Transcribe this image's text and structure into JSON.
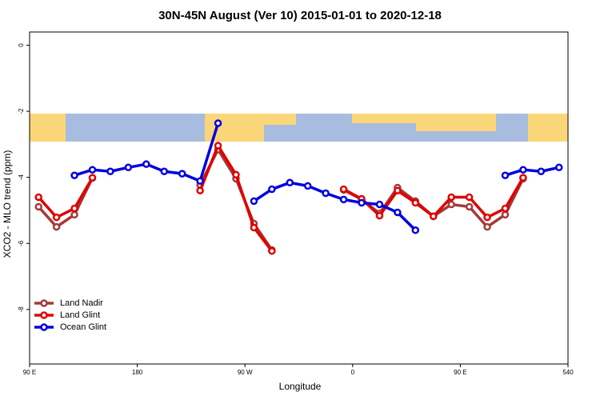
{
  "chart_data": {
    "type": "line",
    "title": "30N-45N August (Ver 10)   2015-01-01 to 2020-12-18",
    "x_label": "Longitude",
    "y_label": "XCO2 - MLO trend (ppm)",
    "x": [
      97.5,
      112.5,
      127.5,
      142.5,
      157.5,
      172.5,
      187.5,
      202.5,
      217.5,
      232.5,
      247.5,
      262.5,
      277.5,
      292.5,
      307.5,
      322.5,
      337.5,
      352.5,
      367.5,
      382.5,
      397.5,
      412.5,
      427.5,
      442.5,
      457.5,
      472.5,
      487.5,
      502.5,
      517.5,
      532.5
    ],
    "series": [
      {
        "name": "Land Nadir",
        "color": "#a33a3a",
        "values": [
          -4.89,
          -5.5,
          -5.13,
          -4.02,
          null,
          null,
          null,
          null,
          null,
          -4.23,
          -3.16,
          -4.04,
          -5.4,
          -6.2,
          null,
          null,
          null,
          -4.38,
          -4.67,
          -5.09,
          -4.31,
          -4.72,
          -5.18,
          -4.82,
          -4.89,
          -5.5,
          -5.13,
          -4.04,
          null,
          null
        ]
      },
      {
        "name": "Land Glint",
        "color": "#e00000",
        "values": [
          -4.6,
          -5.21,
          -4.94,
          -4.01,
          null,
          null,
          null,
          null,
          null,
          -4.4,
          -3.04,
          -3.92,
          -5.52,
          -6.23,
          null,
          null,
          null,
          -4.36,
          -4.65,
          -5.16,
          -4.4,
          -4.77,
          -5.18,
          -4.6,
          -4.6,
          -5.21,
          -4.94,
          -4.01,
          null,
          null
        ]
      },
      {
        "name": "Ocean Glint",
        "color": "#0000dd",
        "values": [
          null,
          null,
          -3.94,
          -3.77,
          -3.82,
          -3.7,
          -3.6,
          -3.82,
          -3.89,
          -4.11,
          -2.36,
          null,
          -4.72,
          -4.36,
          -4.16,
          -4.26,
          -4.48,
          -4.67,
          -4.77,
          -4.82,
          -5.06,
          -5.6,
          null,
          null,
          null,
          null,
          -3.94,
          -3.77,
          -3.82,
          -3.7
        ]
      }
    ],
    "xlim": [
      90,
      540
    ],
    "xticks": [
      {
        "value": 90,
        "label": "90 E"
      },
      180,
      {
        "value": 270,
        "label": "90 W"
      },
      {
        "value": 360,
        "label": "0"
      },
      {
        "value": 450,
        "label": "90 E"
      },
      540
    ],
    "ylim": [
      -9.65,
      0.4
    ],
    "yticks": [
      0,
      -2,
      -4,
      -6,
      -8
    ],
    "legend_loc": "lower left"
  }
}
